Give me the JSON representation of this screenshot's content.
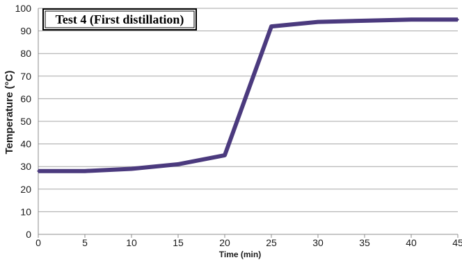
{
  "chart_data": {
    "type": "line",
    "title": "Test 4 (First distillation)",
    "xlabel": "Time (min)",
    "ylabel": "Temperature (°C)",
    "xlim": [
      0,
      45
    ],
    "ylim": [
      0,
      100
    ],
    "x_ticks": [
      "0",
      "5",
      "10",
      "15",
      "20",
      "25",
      "30",
      "35",
      "40",
      "45"
    ],
    "y_ticks": [
      "0",
      "10",
      "20",
      "30",
      "40",
      "50",
      "60",
      "70",
      "80",
      "90",
      "100"
    ],
    "grid": true,
    "legend": "none",
    "series": [
      {
        "color": "#4b3a7e",
        "x": [
          0,
          5,
          10,
          15,
          20,
          25,
          30,
          35,
          40,
          45
        ],
        "y": [
          28,
          28,
          29,
          31,
          35,
          92,
          94,
          94.5,
          95,
          95
        ]
      }
    ]
  }
}
